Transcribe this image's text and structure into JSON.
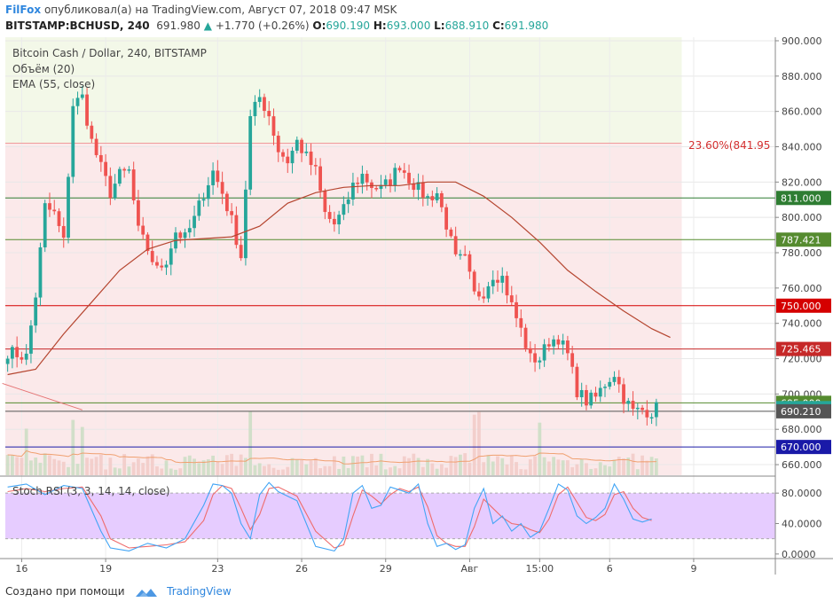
{
  "header": {
    "publisher": "FilFox",
    "published_text": "опубликовал(а) на TradingView.com, Август 07, 2018 09:47 MSK",
    "symbol": "BITSTAMP:BCHUSD, 240",
    "last": "691.980",
    "change": "+1.770 (+0.26%)",
    "o_label": "O:",
    "o": "690.190",
    "h_label": "H:",
    "h": "693.000",
    "l_label": "L:",
    "l": "688.910",
    "c_label": "C:",
    "c": "691.980"
  },
  "legend": {
    "title": "Bitcoin Cash / Dollar, 240, BITSTAMP",
    "volume": "Объём (20)",
    "ema": "EMA (55, close)"
  },
  "stoch_label": "Stoch RSI (3, 3, 14, 14, close)",
  "fib_label": "23.60%(841.95",
  "footer": {
    "made_with": "Создано при помощи",
    "brand": "TradingView"
  },
  "colors": {
    "up": "#26a69a",
    "down": "#ef5350",
    "ema": "#b5452f",
    "stoch_k": "#42a5f5",
    "stoch_d": "#ef6c6c",
    "stoch_band": "#e6ccff",
    "fib_zone": "#fbe9ea",
    "top_zone": "#f3f8e8"
  },
  "chart_data": {
    "type": "candlestick",
    "y_axis_ticks": [
      "900.000",
      "880.000",
      "860.000",
      "840.000",
      "820.000",
      "800.000",
      "780.000",
      "760.000",
      "740.000",
      "720.000",
      "700.000",
      "680.000",
      "660.000"
    ],
    "y_tick_values": [
      900,
      880,
      860,
      840,
      820,
      800,
      780,
      760,
      740,
      720,
      700,
      680,
      660
    ],
    "ylim": [
      654,
      902
    ],
    "x_axis_ticks": [
      {
        "label": "16",
        "index": 3
      },
      {
        "label": "19",
        "index": 21
      },
      {
        "label": "23",
        "index": 45
      },
      {
        "label": "26",
        "index": 63
      },
      {
        "label": "29",
        "index": 81
      },
      {
        "label": "Авг",
        "index": 99
      },
      {
        "label": "15:00",
        "index": 114
      },
      {
        "label": "6",
        "index": 129
      },
      {
        "label": "9",
        "index": 147
      }
    ],
    "x_slots": 165,
    "price_lines": [
      {
        "label": "811.000",
        "value": 811,
        "color": "#2e7d32"
      },
      {
        "label": "787.421",
        "value": 787.4,
        "color": "#558b2f"
      },
      {
        "label": "750.000",
        "value": 750,
        "color": "#d50000"
      },
      {
        "label": "725.465",
        "value": 725.5,
        "color": "#c62828"
      },
      {
        "label": "695.000",
        "value": 695,
        "color": "#558b2f"
      },
      {
        "label": "691.980",
        "value": 692,
        "color": "#26a69a"
      },
      {
        "label": "690.210",
        "value": 690.2,
        "color": "#555555"
      },
      {
        "label": "670.000",
        "value": 670,
        "color": "#1a1aa8"
      }
    ],
    "fib_level": {
      "label": "23.60%(841.95",
      "value": 842
    },
    "trendline": [
      [
        0,
        706
      ],
      [
        16,
        691
      ]
    ],
    "anchor_points": [
      [
        0,
        724
      ],
      [
        4,
        721
      ],
      [
        6,
        756
      ],
      [
        8,
        806
      ],
      [
        10,
        802
      ],
      [
        12,
        786
      ],
      [
        14,
        864
      ],
      [
        16,
        868
      ],
      [
        18,
        843
      ],
      [
        20,
        828
      ],
      [
        22,
        814
      ],
      [
        24,
        824
      ],
      [
        26,
        826
      ],
      [
        28,
        792
      ],
      [
        30,
        782
      ],
      [
        32,
        770
      ],
      [
        34,
        776
      ],
      [
        36,
        792
      ],
      [
        38,
        788
      ],
      [
        40,
        799
      ],
      [
        42,
        814
      ],
      [
        44,
        826
      ],
      [
        46,
        814
      ],
      [
        48,
        798
      ],
      [
        50,
        778
      ],
      [
        52,
        856
      ],
      [
        54,
        868
      ],
      [
        56,
        858
      ],
      [
        58,
        838
      ],
      [
        60,
        832
      ],
      [
        62,
        843
      ],
      [
        64,
        834
      ],
      [
        66,
        826
      ],
      [
        68,
        802
      ],
      [
        70,
        796
      ],
      [
        72,
        804
      ],
      [
        74,
        818
      ],
      [
        76,
        824
      ],
      [
        78,
        818
      ],
      [
        80,
        816
      ],
      [
        82,
        821
      ],
      [
        84,
        830
      ],
      [
        86,
        822
      ],
      [
        88,
        816
      ],
      [
        90,
        811
      ],
      [
        92,
        814
      ],
      [
        94,
        796
      ],
      [
        96,
        776
      ],
      [
        98,
        776
      ],
      [
        100,
        756
      ],
      [
        102,
        758
      ],
      [
        104,
        768
      ],
      [
        106,
        766
      ],
      [
        108,
        750
      ],
      [
        110,
        736
      ],
      [
        112,
        720
      ],
      [
        114,
        720
      ],
      [
        116,
        730
      ],
      [
        118,
        732
      ],
      [
        120,
        722
      ],
      [
        122,
        702
      ],
      [
        124,
        696
      ],
      [
        126,
        698
      ],
      [
        128,
        706
      ],
      [
        130,
        712
      ],
      [
        132,
        698
      ],
      [
        134,
        690
      ],
      [
        136,
        691
      ],
      [
        138,
        690
      ],
      [
        139,
        692
      ]
    ],
    "ema": [
      [
        0,
        711
      ],
      [
        6,
        714
      ],
      [
        12,
        734
      ],
      [
        18,
        752
      ],
      [
        24,
        770
      ],
      [
        30,
        782
      ],
      [
        36,
        787
      ],
      [
        42,
        788
      ],
      [
        48,
        789
      ],
      [
        54,
        795
      ],
      [
        60,
        808
      ],
      [
        66,
        814
      ],
      [
        72,
        817
      ],
      [
        78,
        818
      ],
      [
        84,
        818
      ],
      [
        90,
        820
      ],
      [
        96,
        820
      ],
      [
        102,
        812
      ],
      [
        108,
        800
      ],
      [
        114,
        786
      ],
      [
        120,
        770
      ],
      [
        126,
        758
      ],
      [
        132,
        747
      ],
      [
        138,
        737
      ],
      [
        142,
        732
      ]
    ],
    "volume_base": 654,
    "volume_top": 692,
    "stoch": {
      "yticks": [
        "80.0000",
        "40.0000",
        "0.0000"
      ],
      "ytick_values": [
        80,
        40,
        0
      ],
      "ylim": [
        -6,
        100
      ],
      "band": [
        20,
        80
      ],
      "k": [
        [
          0,
          88
        ],
        [
          4,
          92
        ],
        [
          8,
          78
        ],
        [
          12,
          90
        ],
        [
          16,
          86
        ],
        [
          20,
          30
        ],
        [
          22,
          8
        ],
        [
          26,
          4
        ],
        [
          30,
          14
        ],
        [
          34,
          8
        ],
        [
          38,
          20
        ],
        [
          42,
          64
        ],
        [
          44,
          92
        ],
        [
          46,
          90
        ],
        [
          48,
          80
        ],
        [
          50,
          40
        ],
        [
          52,
          20
        ],
        [
          54,
          78
        ],
        [
          56,
          94
        ],
        [
          58,
          82
        ],
        [
          62,
          70
        ],
        [
          66,
          10
        ],
        [
          70,
          4
        ],
        [
          72,
          20
        ],
        [
          74,
          80
        ],
        [
          76,
          90
        ],
        [
          78,
          60
        ],
        [
          80,
          64
        ],
        [
          82,
          88
        ],
        [
          84,
          84
        ],
        [
          86,
          80
        ],
        [
          88,
          92
        ],
        [
          90,
          40
        ],
        [
          92,
          10
        ],
        [
          94,
          14
        ],
        [
          96,
          6
        ],
        [
          98,
          12
        ],
        [
          100,
          60
        ],
        [
          102,
          86
        ],
        [
          104,
          40
        ],
        [
          106,
          50
        ],
        [
          108,
          30
        ],
        [
          110,
          40
        ],
        [
          112,
          22
        ],
        [
          114,
          30
        ],
        [
          116,
          60
        ],
        [
          118,
          92
        ],
        [
          120,
          84
        ],
        [
          122,
          50
        ],
        [
          124,
          40
        ],
        [
          126,
          48
        ],
        [
          128,
          60
        ],
        [
          130,
          92
        ],
        [
          132,
          72
        ],
        [
          134,
          46
        ],
        [
          136,
          42
        ],
        [
          138,
          46
        ]
      ],
      "d": [
        [
          0,
          82
        ],
        [
          4,
          86
        ],
        [
          8,
          82
        ],
        [
          12,
          86
        ],
        [
          16,
          88
        ],
        [
          20,
          50
        ],
        [
          22,
          20
        ],
        [
          26,
          8
        ],
        [
          30,
          10
        ],
        [
          34,
          12
        ],
        [
          38,
          16
        ],
        [
          42,
          44
        ],
        [
          44,
          78
        ],
        [
          46,
          90
        ],
        [
          48,
          86
        ],
        [
          50,
          60
        ],
        [
          52,
          32
        ],
        [
          54,
          52
        ],
        [
          56,
          86
        ],
        [
          58,
          88
        ],
        [
          62,
          76
        ],
        [
          66,
          30
        ],
        [
          70,
          8
        ],
        [
          72,
          12
        ],
        [
          74,
          50
        ],
        [
          76,
          84
        ],
        [
          78,
          76
        ],
        [
          80,
          66
        ],
        [
          82,
          78
        ],
        [
          84,
          86
        ],
        [
          86,
          82
        ],
        [
          88,
          88
        ],
        [
          90,
          62
        ],
        [
          92,
          24
        ],
        [
          94,
          14
        ],
        [
          96,
          10
        ],
        [
          98,
          10
        ],
        [
          100,
          36
        ],
        [
          102,
          72
        ],
        [
          104,
          60
        ],
        [
          106,
          48
        ],
        [
          108,
          40
        ],
        [
          110,
          38
        ],
        [
          112,
          32
        ],
        [
          114,
          28
        ],
        [
          116,
          46
        ],
        [
          118,
          78
        ],
        [
          120,
          88
        ],
        [
          122,
          68
        ],
        [
          124,
          48
        ],
        [
          126,
          44
        ],
        [
          128,
          52
        ],
        [
          130,
          78
        ],
        [
          132,
          82
        ],
        [
          134,
          60
        ],
        [
          136,
          48
        ],
        [
          138,
          44
        ]
      ]
    }
  }
}
